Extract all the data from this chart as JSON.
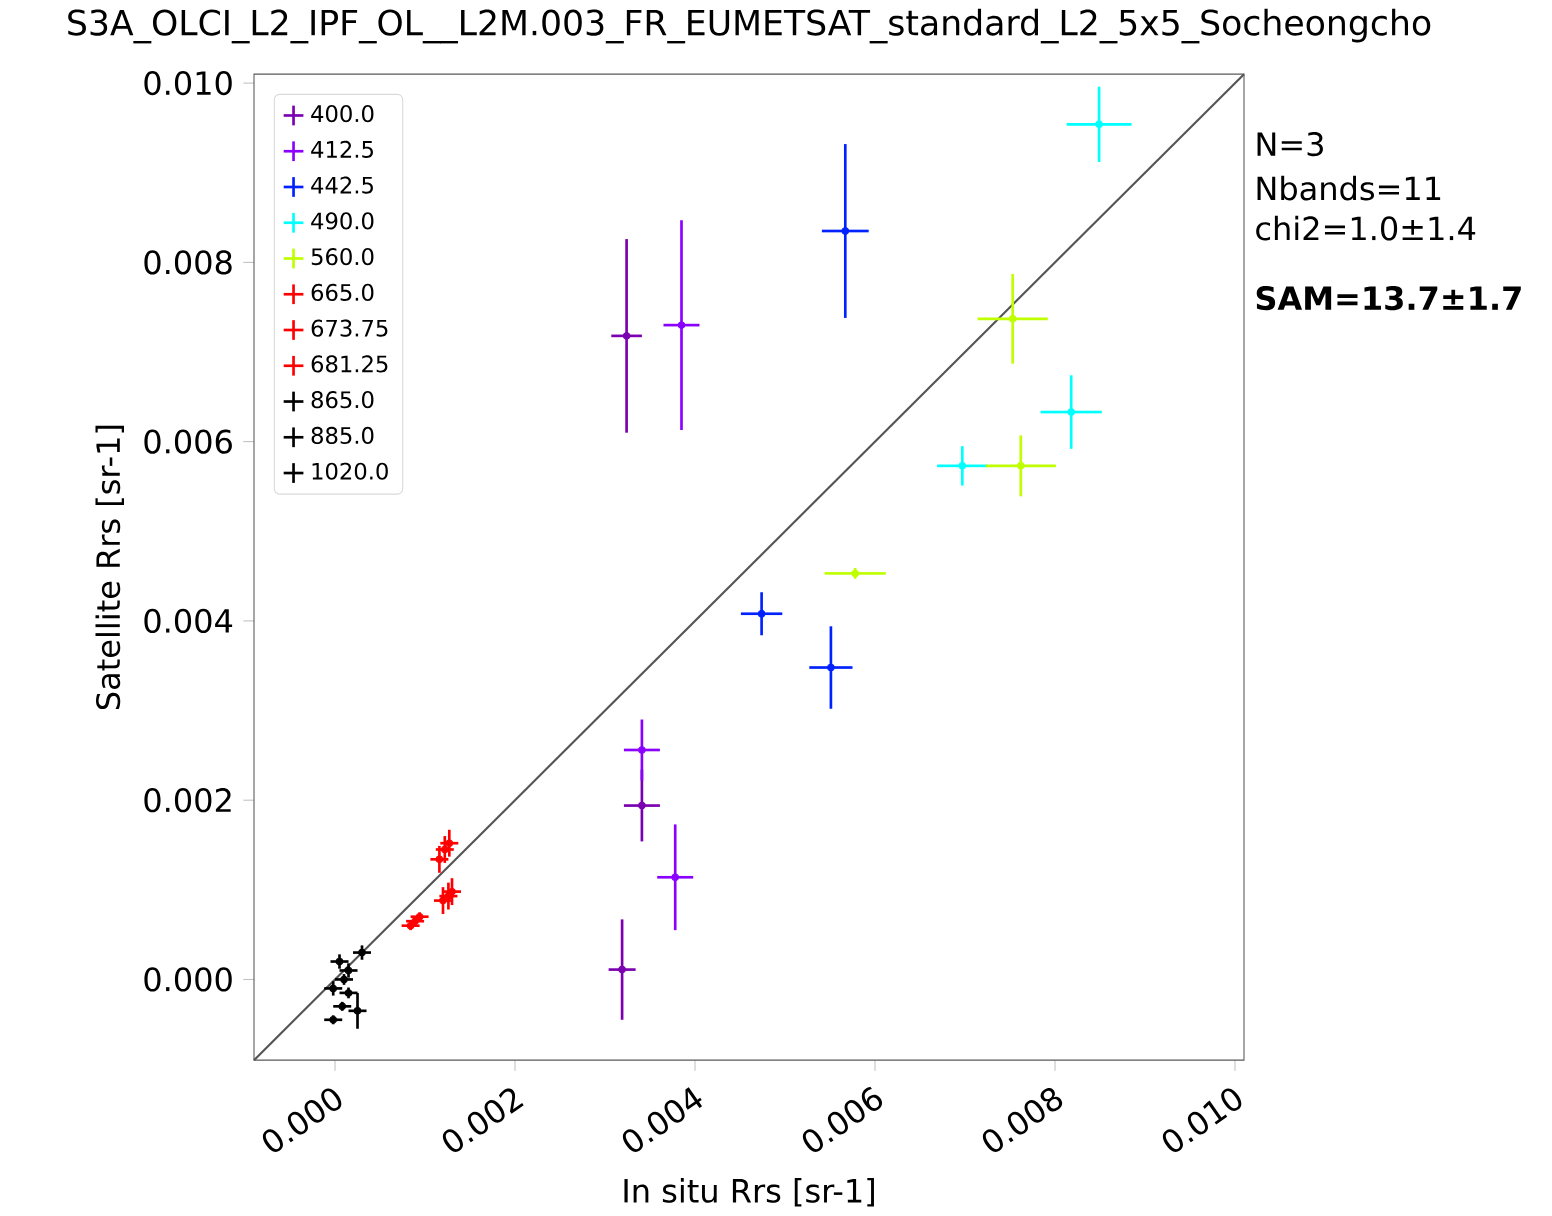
{
  "chart_data": {
    "type": "scatter",
    "title": "S3A_OLCI_L2_IPF_OL__L2M.003_FR_EUMETSAT_standard_L2_5x5_Socheongcho",
    "xlabel": "In situ Rrs [sr-1]",
    "ylabel": "Satellite Rrs [sr-1]",
    "xlim": [
      -0.0009,
      0.0101
    ],
    "ylim": [
      -0.0009,
      0.0101
    ],
    "xticks": [
      {
        "value": 0,
        "label": "0.000"
      },
      {
        "value": 0.002,
        "label": "0.002"
      },
      {
        "value": 0.004,
        "label": "0.004"
      },
      {
        "value": 0.006,
        "label": "0.006"
      },
      {
        "value": 0.008,
        "label": "0.008"
      },
      {
        "value": 0.01,
        "label": "0.010"
      }
    ],
    "yticks": [
      {
        "value": 0,
        "label": "0.000"
      },
      {
        "value": 0.002,
        "label": "0.002"
      },
      {
        "value": 0.004,
        "label": "0.004"
      },
      {
        "value": 0.006,
        "label": "0.006"
      },
      {
        "value": 0.008,
        "label": "0.008"
      },
      {
        "value": 0.01,
        "label": "0.010"
      }
    ],
    "legend": "top left",
    "marker": "circle",
    "grid": false,
    "annotations": [
      "N=3",
      "Nbands=11",
      "chi2=1.0±1.4",
      "SAM=13.7±1.7"
    ],
    "series": [
      {
        "type": "line",
        "color": "#555555",
        "line_style": "solid",
        "marker": "none",
        "x": [
          -0.0009,
          0.0101
        ],
        "values": [
          -0.0009,
          0.0101
        ]
      },
      {
        "name": "400.0",
        "color": "#7a00b0",
        "x": [
          0.00324,
          0.00341,
          0.00319
        ],
        "values": [
          0.00718,
          0.00194,
          0.00011
        ],
        "errors": [
          0.00108,
          0.0004,
          0.00056
        ],
        "xerrors": [
          0.00017,
          0.0002,
          0.00015
        ]
      },
      {
        "name": "412.5",
        "color": "#8a00ff",
        "x": [
          0.00385,
          0.00341,
          0.00378
        ],
        "values": [
          0.0073,
          0.00256,
          0.00114
        ],
        "errors": [
          0.00117,
          0.00034,
          0.00059
        ],
        "xerrors": [
          0.0002,
          0.0002,
          0.0002
        ]
      },
      {
        "name": "442.5",
        "color": "#0022ff",
        "x": [
          0.00567,
          0.00474,
          0.00551
        ],
        "values": [
          0.00835,
          0.00408,
          0.00348
        ],
        "errors": [
          0.00097,
          0.00024,
          0.00046
        ],
        "xerrors": [
          0.00026,
          0.00023,
          0.00024
        ]
      },
      {
        "name": "490.0",
        "color": "#00ffff",
        "x": [
          0.00849,
          0.00818,
          0.00697
        ],
        "values": [
          0.00954,
          0.00633,
          0.00573
        ],
        "errors": [
          0.00042,
          0.00041,
          0.00022
        ],
        "xerrors": [
          0.00036,
          0.00034,
          0.00028
        ]
      },
      {
        "name": "560.0",
        "color": "#bfff00",
        "x": [
          0.00753,
          0.00762,
          0.00578
        ],
        "values": [
          0.00737,
          0.00573,
          0.00453
        ],
        "errors": [
          0.0005,
          0.00034,
          6e-05
        ],
        "xerrors": [
          0.00039,
          0.00039,
          0.00034
        ]
      },
      {
        "name": "665.0",
        "color": "#ff0000",
        "x": [
          0.00089,
          0.00116,
          0.0012
        ],
        "values": [
          0.00065,
          0.00134,
          0.00088
        ],
        "errors": [
          5e-05,
          0.00015,
          0.00015
        ],
        "xerrors": [
          0.0001,
          0.0001,
          0.0001
        ]
      },
      {
        "name": "673.75",
        "color": "#ff0000",
        "x": [
          0.00094,
          0.00122,
          0.00126
        ],
        "values": [
          0.0007,
          0.00145,
          0.00093
        ],
        "errors": [
          5e-05,
          0.00015,
          0.00015
        ],
        "xerrors": [
          0.0001,
          0.0001,
          0.0001
        ]
      },
      {
        "name": "681.25",
        "color": "#ff0000",
        "x": [
          0.00084,
          0.00127,
          0.0013
        ],
        "values": [
          0.0006,
          0.00152,
          0.00098
        ],
        "errors": [
          5e-05,
          0.00015,
          0.00015
        ],
        "xerrors": [
          0.0001,
          0.0001,
          0.0001
        ]
      },
      {
        "name": "865.0",
        "color": "#000000",
        "x": [
          5e-05,
          -2e-05,
          -2e-05
        ],
        "values": [
          0.0002,
          -0.0001,
          -0.00045
        ],
        "errors": [
          8e-05,
          8e-05,
          5e-05
        ],
        "xerrors": [
          0.0001,
          0.0001,
          0.0001
        ]
      },
      {
        "name": "885.0",
        "color": "#000000",
        "x": [
          0.00015,
          0.0001,
          0.00025
        ],
        "values": [
          0.0001,
          0,
          -0.00035
        ],
        "errors": [
          8e-05,
          6e-05,
          0.0002
        ],
        "xerrors": [
          0.0001,
          0.0001,
          0.0001
        ]
      },
      {
        "name": "1020.0",
        "color": "#000000",
        "x": [
          0.0003,
          0.00015,
          8e-05
        ],
        "values": [
          0.0003,
          -0.00015,
          -0.0003
        ],
        "errors": [
          8e-05,
          6e-05,
          5e-05
        ],
        "xerrors": [
          0.0001,
          0.0001,
          0.0001
        ]
      }
    ]
  }
}
